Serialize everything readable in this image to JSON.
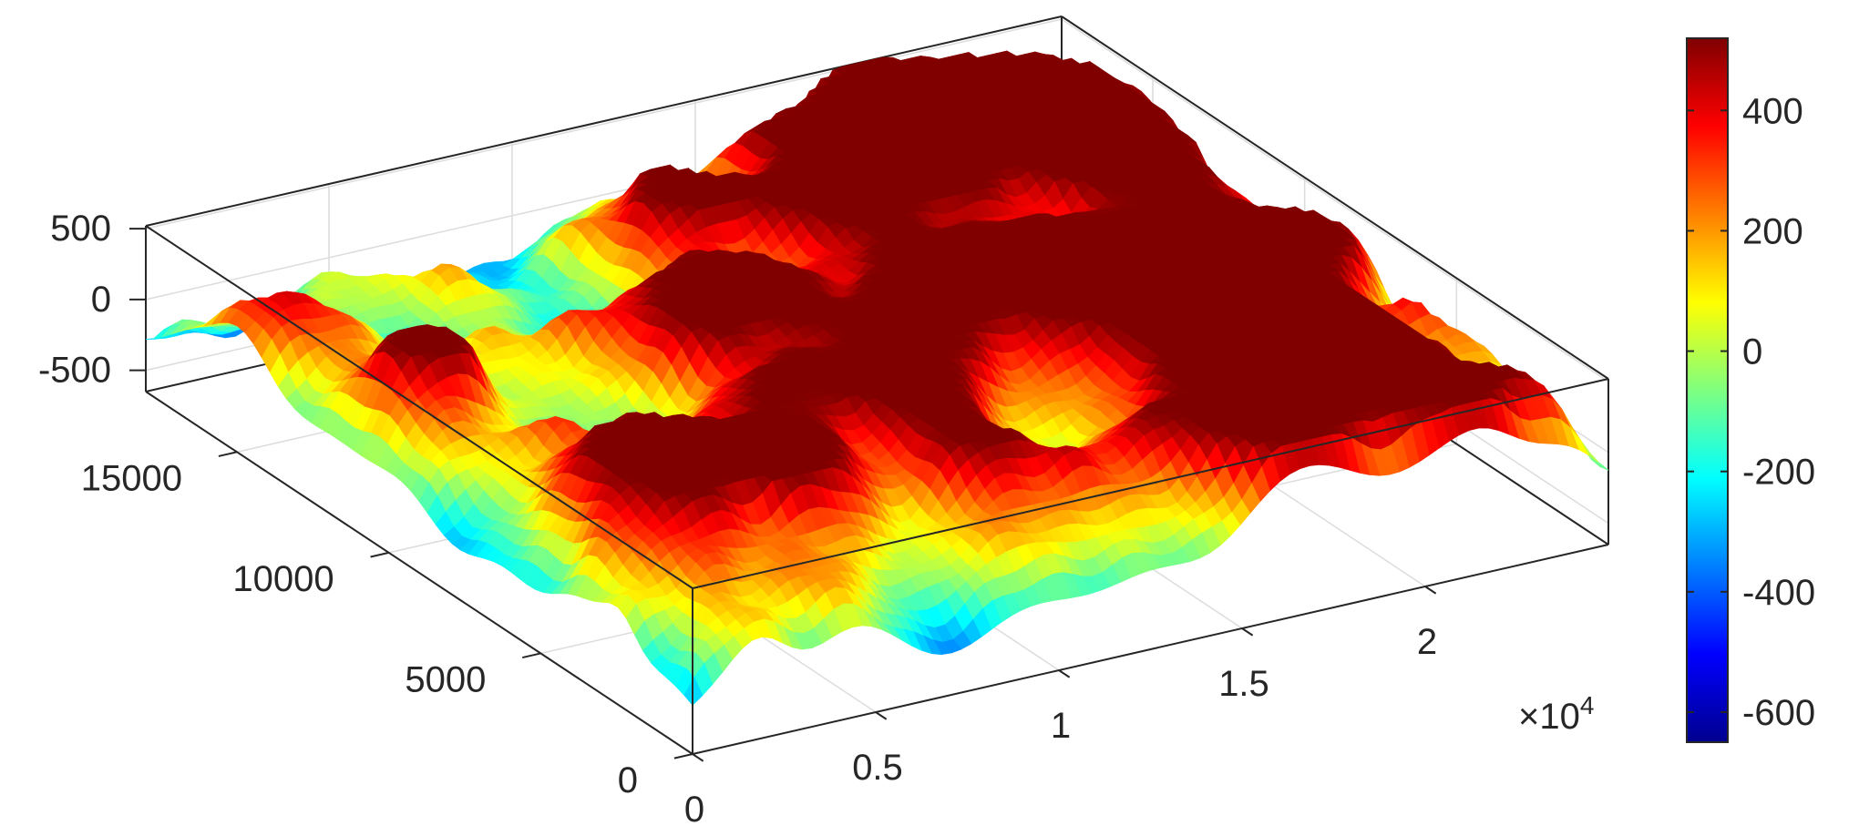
{
  "chart_data": {
    "type": "surface",
    "title": "",
    "xlabel": "",
    "ylabel": "",
    "zlabel": "",
    "colormap": "jet",
    "x_exponent_label": "×10",
    "x_exponent_power": "4",
    "x_axis": {
      "range": [
        0,
        25000
      ],
      "ticks": [
        0,
        5000,
        10000,
        15000,
        20000
      ],
      "tick_labels": [
        "0",
        "0.5",
        "1",
        "1.5",
        "2"
      ]
    },
    "y_axis": {
      "range": [
        0,
        18000
      ],
      "ticks": [
        0,
        5000,
        10000,
        15000
      ],
      "tick_labels": [
        "0",
        "5000",
        "10000",
        "15000"
      ]
    },
    "z_axis": {
      "range": [
        -650,
        520
      ],
      "ticks": [
        -500,
        0,
        500
      ],
      "tick_labels": [
        "-500",
        "0",
        "500"
      ]
    },
    "colorbar": {
      "range": [
        -650,
        520
      ],
      "ticks": [
        -600,
        -400,
        -200,
        0,
        200,
        400
      ],
      "tick_labels": [
        "-600",
        "-400",
        "-200",
        "0",
        "200",
        "400"
      ]
    },
    "surface_value_range": [
      -650,
      520
    ],
    "grid": true,
    "box": true
  }
}
